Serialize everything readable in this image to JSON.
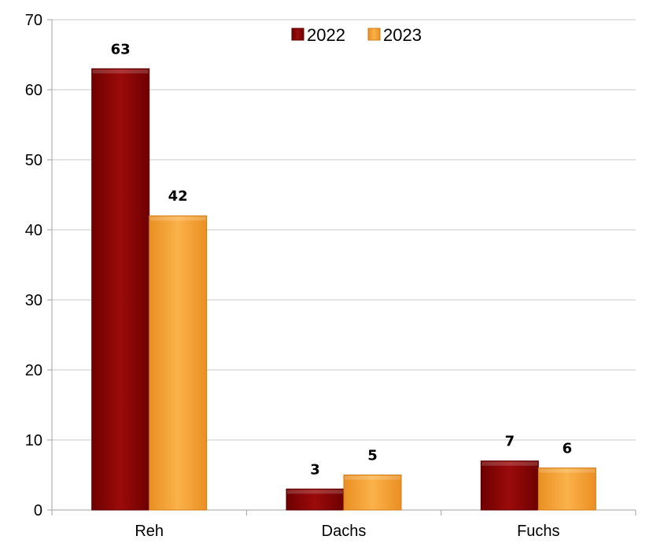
{
  "chart_data": {
    "type": "bar",
    "categories": [
      "Reh",
      "Dachs",
      "Fuchs"
    ],
    "series": [
      {
        "name": "2022",
        "values": [
          63,
          3,
          7
        ],
        "color": "#8B0000"
      },
      {
        "name": "2023",
        "values": [
          42,
          5,
          6
        ],
        "color": "#F5A33A"
      }
    ],
    "ylim": [
      0,
      70
    ],
    "yticks": [
      0,
      10,
      20,
      30,
      40,
      50,
      60,
      70
    ],
    "grid": true,
    "legend_position": "top-right",
    "data_labels": true
  }
}
